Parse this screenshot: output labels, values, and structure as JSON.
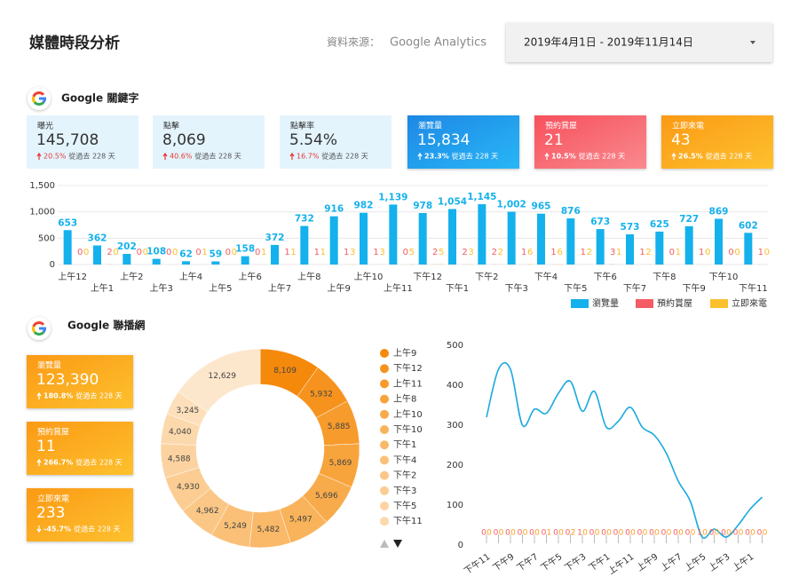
{
  "header": {
    "title": "媒體時段分析",
    "source_label": "資料來源：",
    "source": "Google Analytics",
    "date_range": "2019年4月1日 - 2019年11月14日"
  },
  "keyword_section": {
    "title": "Google 關鍵字",
    "cards": [
      {
        "label": "曝光",
        "value": "145,708",
        "change": "20.5%",
        "note": "從過去 228 天"
      },
      {
        "label": "點擊",
        "value": "8,069",
        "change": "40.6%",
        "note": "從過去 228 天"
      },
      {
        "label": "點擊率",
        "value": "5.54%",
        "change": "16.7%",
        "note": "從過去 228 天"
      },
      {
        "label": "瀏覽量",
        "value": "15,834",
        "change": "23.3%",
        "note": "從過去 228 天"
      },
      {
        "label": "預約賞屋",
        "value": "21",
        "change": "10.5%",
        "note": "從過去 228 天"
      },
      {
        "label": "立即來電",
        "value": "43",
        "change": "26.5%",
        "note": "從過去 228 天"
      }
    ]
  },
  "display_section": {
    "title": "Google 聯播網",
    "cards": [
      {
        "label": "瀏覽量",
        "value": "123,390",
        "change": "180.8%",
        "note": "從過去 228 天"
      },
      {
        "label": "預約賞屋",
        "value": "11",
        "change": "266.7%",
        "note": "從過去 228 天"
      },
      {
        "label": "立即來電",
        "value": "233",
        "change": "-45.7%",
        "note": "從過去 228 天"
      }
    ]
  },
  "chart_data": [
    {
      "type": "bar",
      "categories": [
        "上午12",
        "上午1",
        "上午2",
        "上午3",
        "上午4",
        "上午5",
        "上午6",
        "上午7",
        "上午8",
        "上午9",
        "上午10",
        "上午11",
        "下午12",
        "下午1",
        "下午2",
        "下午3",
        "下午4",
        "下午5",
        "下午6",
        "下午7",
        "下午8",
        "下午9",
        "下午10",
        "下午11"
      ],
      "series": [
        {
          "name": "瀏覽量",
          "color": "#14b1ec",
          "values": [
            653,
            362,
            202,
            108,
            62,
            59,
            158,
            372,
            732,
            916,
            982,
            1139,
            978,
            1054,
            1145,
            1002,
            965,
            876,
            673,
            573,
            625,
            727,
            869,
            602
          ],
          "value_labels": [
            "653",
            "362",
            "202",
            "108",
            "62",
            "59",
            "158",
            "372",
            "732",
            "916",
            "982",
            "1,139",
            "978",
            "1,054",
            "1,145",
            "1,002",
            "965",
            "876",
            "673",
            "573",
            "625",
            "727",
            "869",
            "602"
          ]
        },
        {
          "name": "預約賞屋",
          "color": "#f35b65",
          "values": [
            0,
            2,
            0,
            0,
            0,
            0,
            0,
            1,
            1,
            1,
            1,
            0,
            2,
            2,
            2,
            1,
            1,
            1,
            3,
            1,
            0,
            1,
            0,
            1
          ]
        },
        {
          "name": "立即來電",
          "color": "#fbc02d",
          "values": [
            0,
            0,
            0,
            0,
            1,
            0,
            1,
            1,
            1,
            3,
            3,
            5,
            5,
            3,
            2,
            6,
            6,
            2,
            1,
            2,
            1,
            0,
            0,
            0
          ]
        }
      ],
      "ylim": [
        0,
        1500
      ],
      "yticks": [
        0,
        500,
        {
          "value": 1000,
          "label": "1,000"
        },
        {
          "value": 1500,
          "label": "1,500"
        }
      ],
      "grid": true,
      "legend": "bottom-right"
    },
    {
      "type": "pie",
      "donut": true,
      "categories": [
        "上午9",
        "下午12",
        "上午11",
        "上午8",
        "上午10",
        "下午10",
        "下午1",
        "下午4",
        "下午2",
        "下午3",
        "下午5",
        "下午11",
        null,
        null
      ],
      "values": [
        8109,
        5932,
        5885,
        5869,
        5696,
        5497,
        5482,
        5249,
        4962,
        4930,
        4588,
        4040,
        3245,
        12629
      ],
      "value_labels": [
        "8,109",
        "5,932",
        "5,885",
        "5,869",
        "5,696",
        "5,497",
        "5,482",
        "5,249",
        "4,962",
        "4,930",
        "4,588",
        "4,040",
        "3,245",
        "12,629"
      ],
      "colors": [
        "#f5890c",
        "#f6931e",
        "#f79b2d",
        "#f8a43c",
        "#f8ab4b",
        "#f9b35a",
        "#fab968",
        "#fac077",
        "#fbc786",
        "#fbcd93",
        "#fcd3a0",
        "#fcd9ad",
        "#fde0bb",
        "#fde7cc"
      ],
      "legend": "right"
    },
    {
      "type": "line",
      "categories": [
        "下午11",
        null,
        "下午9",
        null,
        "下午7",
        null,
        "下午5",
        null,
        "下午3",
        null,
        "下午1",
        null,
        "上午11",
        null,
        "上午9",
        null,
        "上午7",
        null,
        "上午5",
        null,
        "上午3",
        null,
        "上午1",
        null
      ],
      "series": [
        {
          "color": "#1aa9df",
          "values": [
            320,
            440,
            440,
            300,
            340,
            330,
            380,
            410,
            335,
            385,
            295,
            310,
            345,
            295,
            275,
            230,
            160,
            110,
            20,
            40,
            20,
            50,
            90,
            120
          ]
        },
        {
          "color": "#f35b65",
          "values": [
            0,
            0,
            0,
            0,
            0,
            0,
            0,
            0,
            1,
            0,
            0,
            0,
            0,
            0,
            0,
            0,
            0,
            0,
            1,
            0,
            0,
            0,
            0,
            0
          ]
        },
        {
          "color": "#fba21c",
          "values": [
            0,
            0,
            0,
            0,
            0,
            1,
            0,
            2,
            0,
            0,
            0,
            0,
            0,
            0,
            0,
            0,
            0,
            0,
            0,
            0,
            0,
            0,
            0,
            0
          ]
        }
      ],
      "ylim": [
        0,
        500
      ],
      "yticks": [
        0,
        100,
        200,
        300,
        400,
        500
      ]
    }
  ]
}
